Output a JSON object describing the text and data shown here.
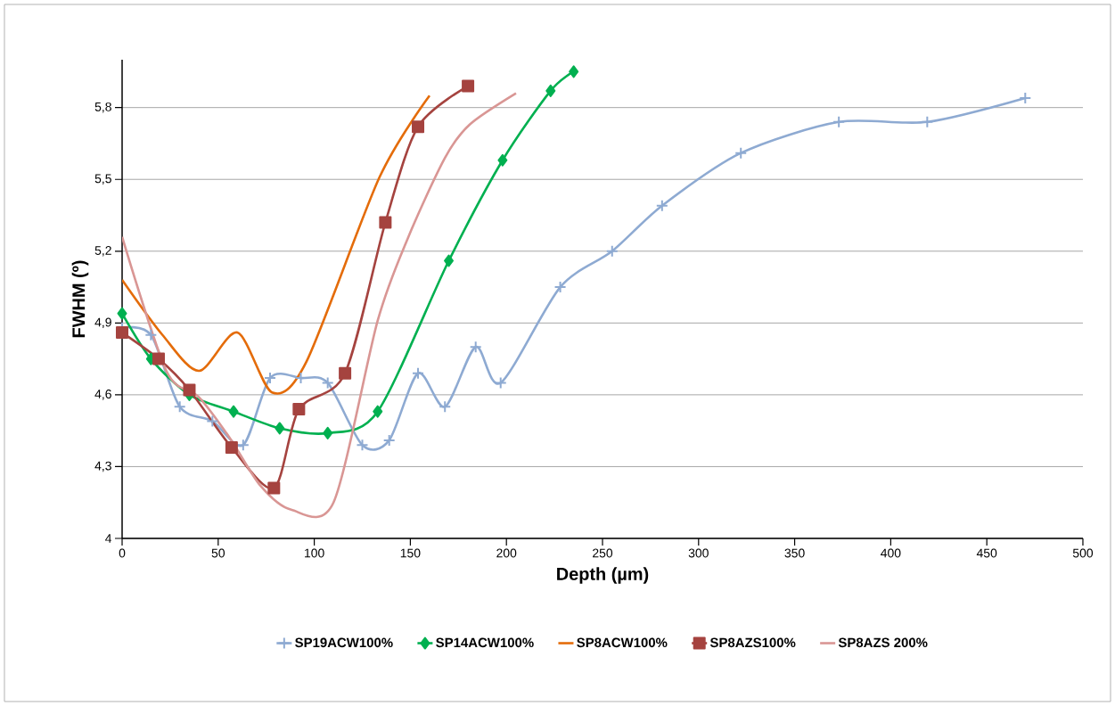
{
  "chart_data": {
    "type": "line",
    "xlabel": "Depth (µm)",
    "ylabel": "FWHM (º)",
    "xlim": [
      0,
      500
    ],
    "xticks": [
      0,
      50,
      100,
      150,
      200,
      250,
      300,
      350,
      400,
      450,
      500
    ],
    "ylim": [
      4,
      6
    ],
    "yticks": [
      4,
      {
        "value": 4.3,
        "label": "4,3"
      },
      {
        "value": 4.6,
        "label": "4,6"
      },
      {
        "value": 4.9,
        "label": "4,9"
      },
      {
        "value": 5.2,
        "label": "5,2"
      },
      {
        "value": 5.5,
        "label": "5,5"
      },
      {
        "value": 5.8,
        "label": "5,8"
      }
    ],
    "grid": "y",
    "legend": "bottom",
    "series": [
      {
        "name": "SP19ACW100%",
        "color": "#8eaad2",
        "marker": "cross",
        "x": [
          0,
          15,
          30,
          47,
          63,
          77,
          93,
          107,
          125,
          139,
          154,
          168,
          184,
          197,
          228,
          255,
          281,
          322,
          373,
          419,
          470
        ],
        "values": [
          4.88,
          4.85,
          4.55,
          4.49,
          4.39,
          4.67,
          4.67,
          4.65,
          4.39,
          4.41,
          4.69,
          4.55,
          4.8,
          4.65,
          5.05,
          5.2,
          5.39,
          5.61,
          5.74,
          5.74,
          5.84
        ]
      },
      {
        "name": "SP14ACW100%",
        "color": "#00b050",
        "marker": "diamond",
        "x": [
          0,
          15,
          35,
          58,
          82,
          107,
          133,
          170,
          198,
          223,
          235
        ],
        "values": [
          4.94,
          4.75,
          4.6,
          4.53,
          4.46,
          4.44,
          4.53,
          5.16,
          5.58,
          5.87,
          5.95
        ]
      },
      {
        "name": "SP8ACW100%",
        "color": "#e46c0a",
        "marker": "none",
        "x": [
          0,
          21,
          40,
          60,
          78,
          96,
          134,
          160
        ],
        "values": [
          5.08,
          4.85,
          4.7,
          4.86,
          4.61,
          4.74,
          5.51,
          5.85
        ]
      },
      {
        "name": "SP8AZS100%",
        "color": "#a5433f",
        "marker": "square",
        "x": [
          0,
          19,
          35,
          57,
          79,
          92,
          116,
          137,
          154,
          180
        ],
        "values": [
          4.86,
          4.75,
          4.62,
          4.38,
          4.21,
          4.54,
          4.69,
          5.32,
          5.72,
          5.89
        ]
      },
      {
        "name": "SP8AZS 200%",
        "color": "#d99694",
        "marker": "none",
        "x": [
          0,
          23,
          40,
          56,
          72,
          88,
          110,
          133,
          149,
          168,
          181,
          205
        ],
        "values": [
          5.26,
          4.7,
          4.59,
          4.42,
          4.22,
          4.12,
          4.15,
          4.91,
          5.26,
          5.59,
          5.73,
          5.86
        ]
      }
    ]
  }
}
